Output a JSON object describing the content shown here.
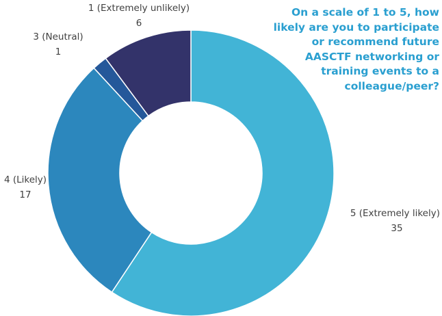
{
  "chart_data": {
    "type": "pie",
    "donut": true,
    "title": "On a scale of 1 to 5, how likely are you to participate or recommend future AASCTF networking or training events to a colleague/peer?",
    "slices": [
      {
        "label": "5 (Extremely likely)",
        "value": 35,
        "color": "#42b4d6"
      },
      {
        "label": "4 (Likely)",
        "value": 17,
        "color": "#2c87bd"
      },
      {
        "label": "3 (Neutral)",
        "value": 1,
        "color": "#25589a"
      },
      {
        "label": "1 (Extremely unlikely)",
        "value": 6,
        "color": "#33336a"
      }
    ],
    "legend": "none",
    "data_labels": "outside"
  }
}
